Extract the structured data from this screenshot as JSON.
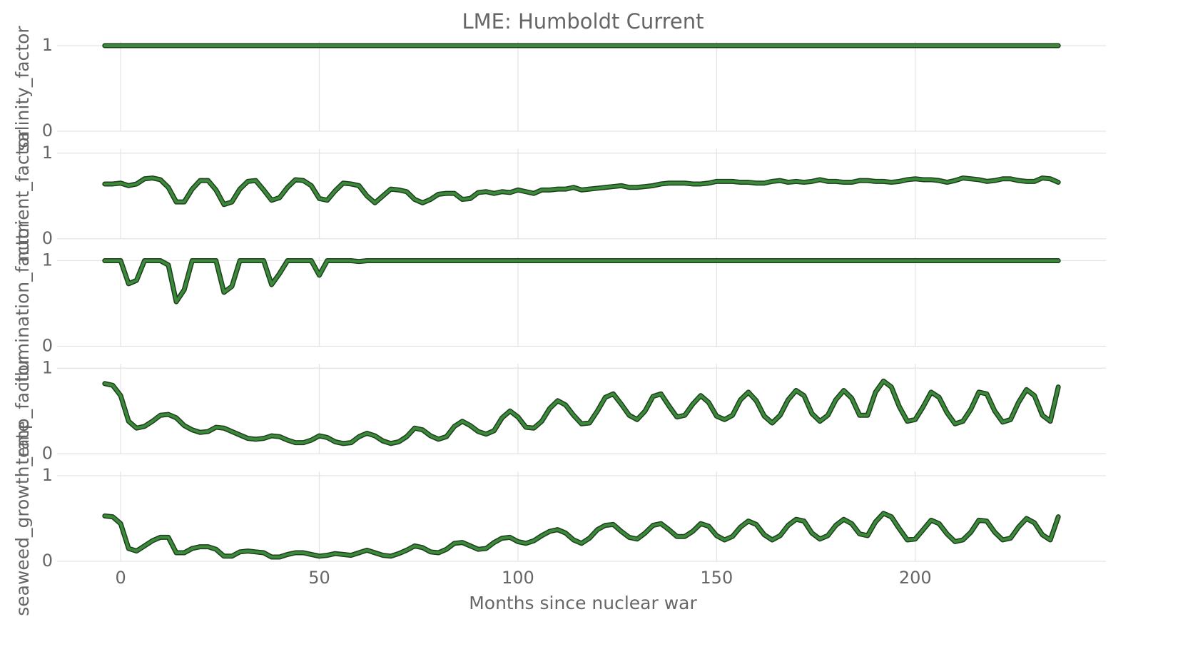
{
  "chart_data": {
    "type": "line",
    "title": "LME: Humboldt Current",
    "xlabel": "Months since nuclear war",
    "xlim": [
      -16,
      248
    ],
    "xticks": [
      0,
      50,
      100,
      150,
      200
    ],
    "grid": true,
    "color": "#3a8a3a",
    "edgecolor": "#1f3d1f",
    "x": [
      -4,
      -2,
      0,
      2,
      4,
      6,
      8,
      10,
      12,
      14,
      16,
      18,
      20,
      22,
      24,
      26,
      28,
      30,
      32,
      34,
      36,
      38,
      40,
      42,
      44,
      46,
      48,
      50,
      52,
      54,
      56,
      58,
      60,
      62,
      64,
      66,
      68,
      70,
      72,
      74,
      76,
      78,
      80,
      82,
      84,
      86,
      88,
      90,
      92,
      94,
      96,
      98,
      100,
      102,
      104,
      106,
      108,
      110,
      112,
      114,
      116,
      118,
      120,
      122,
      124,
      126,
      128,
      130,
      132,
      134,
      136,
      138,
      140,
      142,
      144,
      146,
      148,
      150,
      152,
      154,
      156,
      158,
      160,
      162,
      164,
      166,
      168,
      170,
      172,
      174,
      176,
      178,
      180,
      182,
      184,
      186,
      188,
      190,
      192,
      194,
      196,
      198,
      200,
      202,
      204,
      206,
      208,
      210,
      212,
      214,
      216,
      218,
      220,
      222,
      224,
      226,
      228,
      230,
      232,
      234,
      236
    ],
    "panels": [
      {
        "ylabel": "salinity_factor",
        "ylim": [
          0,
          1
        ],
        "yticks": [
          0,
          1
        ],
        "values": [
          1,
          1,
          1,
          1,
          1,
          1,
          1,
          1,
          1,
          1,
          1,
          1,
          1,
          1,
          1,
          1,
          1,
          1,
          1,
          1,
          1,
          1,
          1,
          1,
          1,
          1,
          1,
          1,
          1,
          1,
          1,
          1,
          1,
          1,
          1,
          1,
          1,
          1,
          1,
          1,
          1,
          1,
          1,
          1,
          1,
          1,
          1,
          1,
          1,
          1,
          1,
          1,
          1,
          1,
          1,
          1,
          1,
          1,
          1,
          1,
          1,
          1,
          1,
          1,
          1,
          1,
          1,
          1,
          1,
          1,
          1,
          1,
          1,
          1,
          1,
          1,
          1,
          1,
          1,
          1,
          1,
          1,
          1,
          1,
          1,
          1,
          1,
          1,
          1,
          1,
          1,
          1,
          1,
          1,
          1,
          1,
          1,
          1,
          1,
          1,
          1,
          1,
          1,
          1,
          1,
          1,
          1,
          1,
          1,
          1,
          1,
          1,
          1,
          1,
          1,
          1,
          1,
          1,
          1,
          1,
          1
        ]
      },
      {
        "ylabel": "nutrient_factor",
        "ylim": [
          0,
          1
        ],
        "yticks": [
          0,
          1
        ],
        "values": [
          0.64,
          0.64,
          0.65,
          0.62,
          0.64,
          0.7,
          0.71,
          0.69,
          0.6,
          0.43,
          0.43,
          0.58,
          0.68,
          0.68,
          0.57,
          0.4,
          0.43,
          0.58,
          0.67,
          0.68,
          0.57,
          0.45,
          0.48,
          0.6,
          0.69,
          0.68,
          0.62,
          0.47,
          0.45,
          0.56,
          0.65,
          0.64,
          0.62,
          0.5,
          0.42,
          0.5,
          0.58,
          0.57,
          0.55,
          0.46,
          0.42,
          0.46,
          0.52,
          0.53,
          0.53,
          0.46,
          0.47,
          0.54,
          0.55,
          0.53,
          0.55,
          0.54,
          0.57,
          0.55,
          0.53,
          0.57,
          0.57,
          0.58,
          0.58,
          0.6,
          0.57,
          0.58,
          0.59,
          0.6,
          0.61,
          0.62,
          0.6,
          0.6,
          0.61,
          0.62,
          0.64,
          0.65,
          0.65,
          0.65,
          0.64,
          0.64,
          0.65,
          0.67,
          0.67,
          0.67,
          0.66,
          0.66,
          0.65,
          0.65,
          0.67,
          0.68,
          0.66,
          0.67,
          0.66,
          0.67,
          0.69,
          0.67,
          0.67,
          0.66,
          0.66,
          0.68,
          0.68,
          0.67,
          0.67,
          0.66,
          0.67,
          0.69,
          0.7,
          0.69,
          0.69,
          0.68,
          0.66,
          0.68,
          0.71,
          0.7,
          0.69,
          0.67,
          0.68,
          0.7,
          0.7,
          0.68,
          0.67,
          0.67,
          0.71,
          0.7,
          0.66
        ]
      },
      {
        "ylabel": "illumination_factor",
        "ylim": [
          0,
          1
        ],
        "yticks": [
          0,
          1
        ],
        "values": [
          1,
          1,
          1,
          0.73,
          0.77,
          1,
          1,
          1,
          0.95,
          0.52,
          0.66,
          1,
          1,
          1,
          1,
          0.63,
          0.7,
          1,
          1,
          1,
          1,
          0.72,
          0.85,
          1,
          1,
          1,
          1,
          0.83,
          1,
          1,
          1,
          1,
          0.99,
          1,
          1,
          1,
          1,
          1,
          1,
          1,
          1,
          1,
          1,
          1,
          1,
          1,
          1,
          1,
          1,
          1,
          1,
          1,
          1,
          1,
          1,
          1,
          1,
          1,
          1,
          1,
          1,
          1,
          1,
          1,
          1,
          1,
          1,
          1,
          1,
          1,
          1,
          1,
          1,
          1,
          1,
          1,
          1,
          1,
          1,
          1,
          1,
          1,
          1,
          1,
          1,
          1,
          1,
          1,
          1,
          1,
          1,
          1,
          1,
          1,
          1,
          1,
          1,
          1,
          1,
          1,
          1,
          1,
          1,
          1,
          1,
          1,
          1,
          1,
          1,
          1,
          1,
          1,
          1,
          1,
          1,
          1,
          1,
          1,
          1,
          1,
          1
        ]
      },
      {
        "ylabel": "temp_factor",
        "ylim": [
          0,
          1
        ],
        "yticks": [
          0,
          1
        ],
        "values": [
          0.82,
          0.8,
          0.68,
          0.38,
          0.3,
          0.32,
          0.38,
          0.45,
          0.46,
          0.42,
          0.33,
          0.28,
          0.25,
          0.26,
          0.31,
          0.3,
          0.26,
          0.22,
          0.18,
          0.17,
          0.18,
          0.21,
          0.2,
          0.16,
          0.13,
          0.13,
          0.16,
          0.21,
          0.19,
          0.14,
          0.12,
          0.13,
          0.2,
          0.24,
          0.21,
          0.15,
          0.12,
          0.14,
          0.2,
          0.3,
          0.28,
          0.21,
          0.17,
          0.2,
          0.32,
          0.38,
          0.33,
          0.26,
          0.23,
          0.27,
          0.42,
          0.5,
          0.43,
          0.31,
          0.3,
          0.38,
          0.53,
          0.62,
          0.57,
          0.45,
          0.35,
          0.36,
          0.5,
          0.66,
          0.7,
          0.58,
          0.45,
          0.4,
          0.5,
          0.67,
          0.7,
          0.56,
          0.43,
          0.45,
          0.58,
          0.68,
          0.6,
          0.44,
          0.4,
          0.45,
          0.63,
          0.72,
          0.62,
          0.44,
          0.36,
          0.45,
          0.63,
          0.74,
          0.68,
          0.47,
          0.38,
          0.45,
          0.63,
          0.74,
          0.65,
          0.45,
          0.45,
          0.72,
          0.85,
          0.78,
          0.55,
          0.38,
          0.4,
          0.55,
          0.72,
          0.66,
          0.48,
          0.35,
          0.38,
          0.52,
          0.72,
          0.7,
          0.5,
          0.37,
          0.4,
          0.6,
          0.75,
          0.68,
          0.45,
          0.38,
          0.78
        ]
      },
      {
        "ylabel": "seaweed_growth_rate",
        "ylim": [
          0,
          1
        ],
        "yticks": [
          0,
          1
        ],
        "values": [
          0.53,
          0.52,
          0.44,
          0.15,
          0.12,
          0.18,
          0.24,
          0.28,
          0.28,
          0.1,
          0.1,
          0.15,
          0.17,
          0.17,
          0.14,
          0.06,
          0.06,
          0.11,
          0.12,
          0.11,
          0.1,
          0.05,
          0.05,
          0.08,
          0.1,
          0.1,
          0.08,
          0.06,
          0.07,
          0.09,
          0.08,
          0.07,
          0.1,
          0.13,
          0.1,
          0.07,
          0.06,
          0.09,
          0.13,
          0.18,
          0.16,
          0.11,
          0.1,
          0.14,
          0.21,
          0.22,
          0.18,
          0.14,
          0.15,
          0.22,
          0.27,
          0.28,
          0.23,
          0.21,
          0.24,
          0.3,
          0.35,
          0.37,
          0.33,
          0.25,
          0.21,
          0.27,
          0.37,
          0.42,
          0.43,
          0.35,
          0.28,
          0.26,
          0.33,
          0.42,
          0.44,
          0.37,
          0.29,
          0.29,
          0.35,
          0.44,
          0.41,
          0.3,
          0.25,
          0.29,
          0.4,
          0.47,
          0.43,
          0.31,
          0.25,
          0.3,
          0.42,
          0.49,
          0.47,
          0.33,
          0.26,
          0.3,
          0.42,
          0.49,
          0.44,
          0.32,
          0.3,
          0.46,
          0.56,
          0.52,
          0.38,
          0.25,
          0.26,
          0.37,
          0.48,
          0.44,
          0.32,
          0.23,
          0.25,
          0.34,
          0.48,
          0.47,
          0.34,
          0.25,
          0.27,
          0.4,
          0.5,
          0.45,
          0.31,
          0.25,
          0.52
        ]
      }
    ]
  }
}
